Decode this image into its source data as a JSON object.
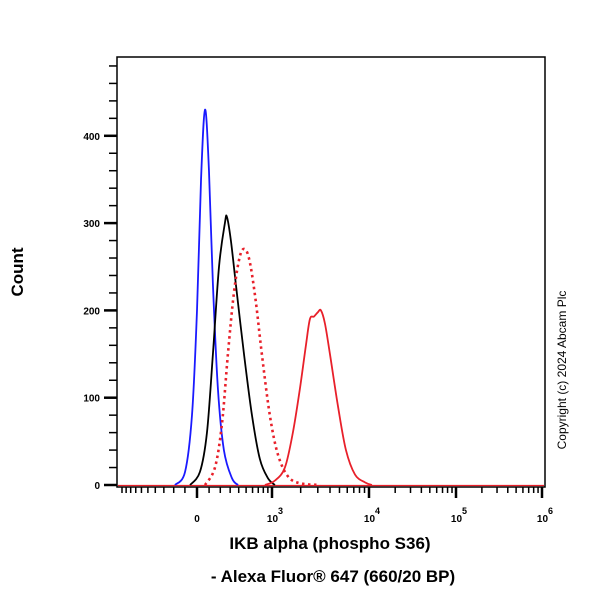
{
  "chart_data": {
    "type": "line",
    "subtype": "flow-cytometry-histogram",
    "xlabel_line1": "IKB alpha (phospho S36)",
    "xlabel_line2": "- Alexa Fluor® 647 (660/20 BP)",
    "ylabel": "Count",
    "x_scale": "biexponential",
    "xlim": [
      -1130,
      1000000
    ],
    "ylim": [
      0,
      490
    ],
    "grid": false,
    "legend": "none",
    "y_ticks": [
      0,
      100,
      200,
      300,
      400
    ],
    "y_tick_labels": [
      "0",
      "100",
      "200",
      "300",
      "400"
    ],
    "x_ticks": [
      {
        "value": 0,
        "base": "0",
        "exp": ""
      },
      {
        "value": 1000,
        "base": "10",
        "exp": "3"
      },
      {
        "value": 10000,
        "base": "10",
        "exp": "4"
      },
      {
        "value": 100000,
        "base": "10",
        "exp": "5"
      },
      {
        "value": 1000000,
        "base": "10",
        "exp": "6"
      }
    ],
    "series": [
      {
        "color": "#1a1aff",
        "style": "solid",
        "x": [
          -188,
          -99,
          -41,
          0,
          33,
          66,
          99,
          133,
          178,
          235,
          319,
          391
        ],
        "y": [
          0,
          15,
          80,
          200,
          350,
          430,
          360,
          230,
          110,
          40,
          8,
          0
        ]
      },
      {
        "color": "#000000",
        "style": "solid",
        "x": [
          -57,
          24,
          82,
          133,
          188,
          245,
          266,
          308,
          365,
          470,
          590,
          730,
          900,
          1073
        ],
        "y": [
          0,
          15,
          60,
          150,
          250,
          300,
          307,
          280,
          230,
          150,
          80,
          30,
          8,
          0
        ]
      },
      {
        "color": "#e8202a",
        "style": "dotted",
        "x": [
          66,
          151,
          216,
          276,
          342,
          415,
          484,
          557,
          656,
          770,
          946,
          1156,
          1472,
          1962,
          3160
        ],
        "y": [
          0,
          20,
          70,
          150,
          220,
          262,
          270,
          255,
          210,
          150,
          80,
          35,
          10,
          2,
          0
        ]
      },
      {
        "color": "#e8202a",
        "style": "solid",
        "x": [
          835,
          1073,
          1370,
          1660,
          1962,
          2265,
          2490,
          2740,
          3010,
          3230,
          3550,
          3995,
          4830,
          5820,
          7200,
          9100,
          10800
        ],
        "y": [
          0,
          5,
          20,
          60,
          110,
          160,
          190,
          193,
          198,
          200,
          185,
          150,
          90,
          40,
          12,
          3,
          0
        ]
      }
    ]
  },
  "copyright": "Copyright (c) 2024 Abcam Plc"
}
